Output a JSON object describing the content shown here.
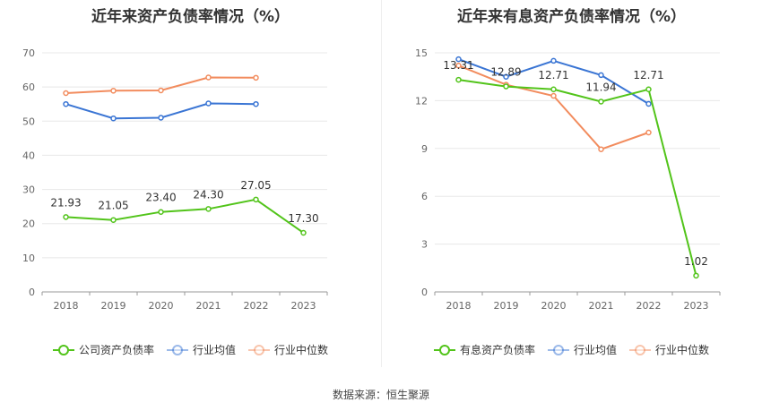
{
  "source_text": "数据来源：恒生聚源",
  "chart_data": [
    {
      "type": "line",
      "title": "近年来资产负债率情况（%）",
      "categories": [
        "2018",
        "2019",
        "2020",
        "2021",
        "2022",
        "2023"
      ],
      "ylim": [
        0,
        70
      ],
      "yticks": [
        0,
        10,
        20,
        30,
        40,
        50,
        60,
        70
      ],
      "grid": true,
      "legend_position": "bottom",
      "series": [
        {
          "name": "公司资产负债率",
          "color": "#52c41a",
          "values": [
            21.93,
            21.05,
            23.4,
            24.3,
            27.05,
            17.3
          ],
          "labels": [
            "21.93",
            "21.05",
            "23.40",
            "24.30",
            "27.05",
            "17.30"
          ]
        },
        {
          "name": "行业均值",
          "color": "#3a75d4",
          "values": [
            55.0,
            50.8,
            51.0,
            55.2,
            55.0,
            null
          ],
          "labels": null
        },
        {
          "name": "行业中位数",
          "color": "#f28c5e",
          "values": [
            58.2,
            58.9,
            59.0,
            62.8,
            62.7,
            null
          ],
          "labels": null
        }
      ]
    },
    {
      "type": "line",
      "title": "近年来有息资产负债率情况（%）",
      "categories": [
        "2018",
        "2019",
        "2020",
        "2021",
        "2022",
        "2023"
      ],
      "ylim": [
        0,
        15
      ],
      "yticks": [
        0,
        3,
        6,
        9,
        12,
        15
      ],
      "grid": true,
      "legend_position": "bottom",
      "series": [
        {
          "name": "有息资产负债率",
          "color": "#52c41a",
          "values": [
            13.31,
            12.89,
            12.71,
            11.94,
            12.71,
            1.02
          ],
          "labels": [
            "13.31",
            "12.89",
            "12.71",
            "11.94",
            "12.71",
            "1.02"
          ]
        },
        {
          "name": "行业均值",
          "color": "#3a75d4",
          "values": [
            14.6,
            13.5,
            14.5,
            13.6,
            11.8,
            null
          ],
          "labels": null
        },
        {
          "name": "行业中位数",
          "color": "#f28c5e",
          "values": [
            14.2,
            13.0,
            12.3,
            8.95,
            10.0,
            null
          ],
          "labels": null
        }
      ]
    }
  ]
}
